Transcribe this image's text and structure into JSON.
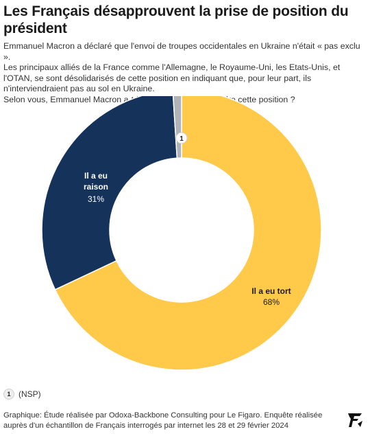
{
  "header": {
    "title": "Les Français désapprouvent la prise de position du président",
    "subtitle_lines": [
      "Emmanuel Macron a déclaré que l'envoi de troupes occidentales en Ukraine n'était « pas exclu ».",
      "Les principaux alliés de la France comme l'Allemagne, le Royaume-Uni, les Etats-Unis, et l'OTAN, se sont désolidarisés de cette position en indiquant que, pour leur part, ils n'interviendraient pas au sol en Ukraine.",
      "Selon vous, Emmanuel Macron a-t-il eu raison ou tort prendre cette position ?"
    ]
  },
  "chart_data": {
    "type": "pie",
    "donut": true,
    "slices": [
      {
        "name": "Il a eu tort",
        "value": 68,
        "value_label": "68%",
        "color": "#ffc94a"
      },
      {
        "name": "Il a eu raison",
        "value": 31,
        "value_label": "31%",
        "color": "#14325a"
      },
      {
        "name": "NSP",
        "value": 1,
        "marker": "1",
        "color": "#b0b4b8"
      }
    ],
    "raison_label_lines": [
      "Il a eu",
      "raison"
    ]
  },
  "legend": {
    "marker": "1",
    "text": "(NSP)"
  },
  "footer": {
    "source": "Graphique: Étude réalisée par Odoxa-Backbone Consulting pour Le Figaro. Enquête réalisée auprès d'un échantillon de Français interrogés par internet les 28 et 29 février 2024"
  },
  "logo": {
    "icon": "le-figaro-logo-icon"
  }
}
